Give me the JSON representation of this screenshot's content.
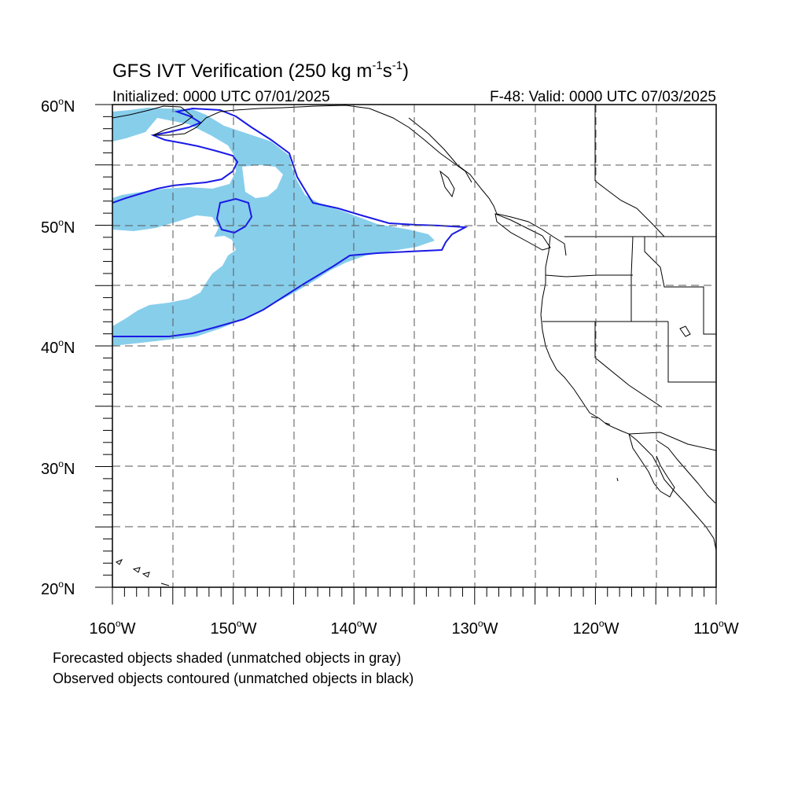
{
  "title": {
    "main": "GFS IVT Verification (250 kg m",
    "sup1": "-1",
    "mid": "s",
    "sup2": "-1",
    "end": ")"
  },
  "subtitle": {
    "left": "Initialized: 0000 UTC 07/01/2025",
    "right": "F-48: Valid: 0000 UTC 07/03/2025"
  },
  "axes": {
    "lat_labels": [
      "60",
      "50",
      "40",
      "30",
      "20"
    ],
    "lon_labels": [
      "160",
      "150",
      "140",
      "130",
      "120",
      "110"
    ],
    "lat_suffix": "N",
    "lon_suffix": "W",
    "degree": "o"
  },
  "footer": {
    "line1": "Forecasted objects shaded (unmatched objects in gray)",
    "line2": "Observed objects contoured (unmatched objects in black)"
  },
  "colors": {
    "forecast_fill": "#87ceeb",
    "observed_contour": "#1a1ae6",
    "coast": "#000000",
    "grid": "#444444"
  },
  "map_extent": {
    "lon_min": -160,
    "lon_max": -110,
    "lat_min": 20,
    "lat_max": 60
  }
}
